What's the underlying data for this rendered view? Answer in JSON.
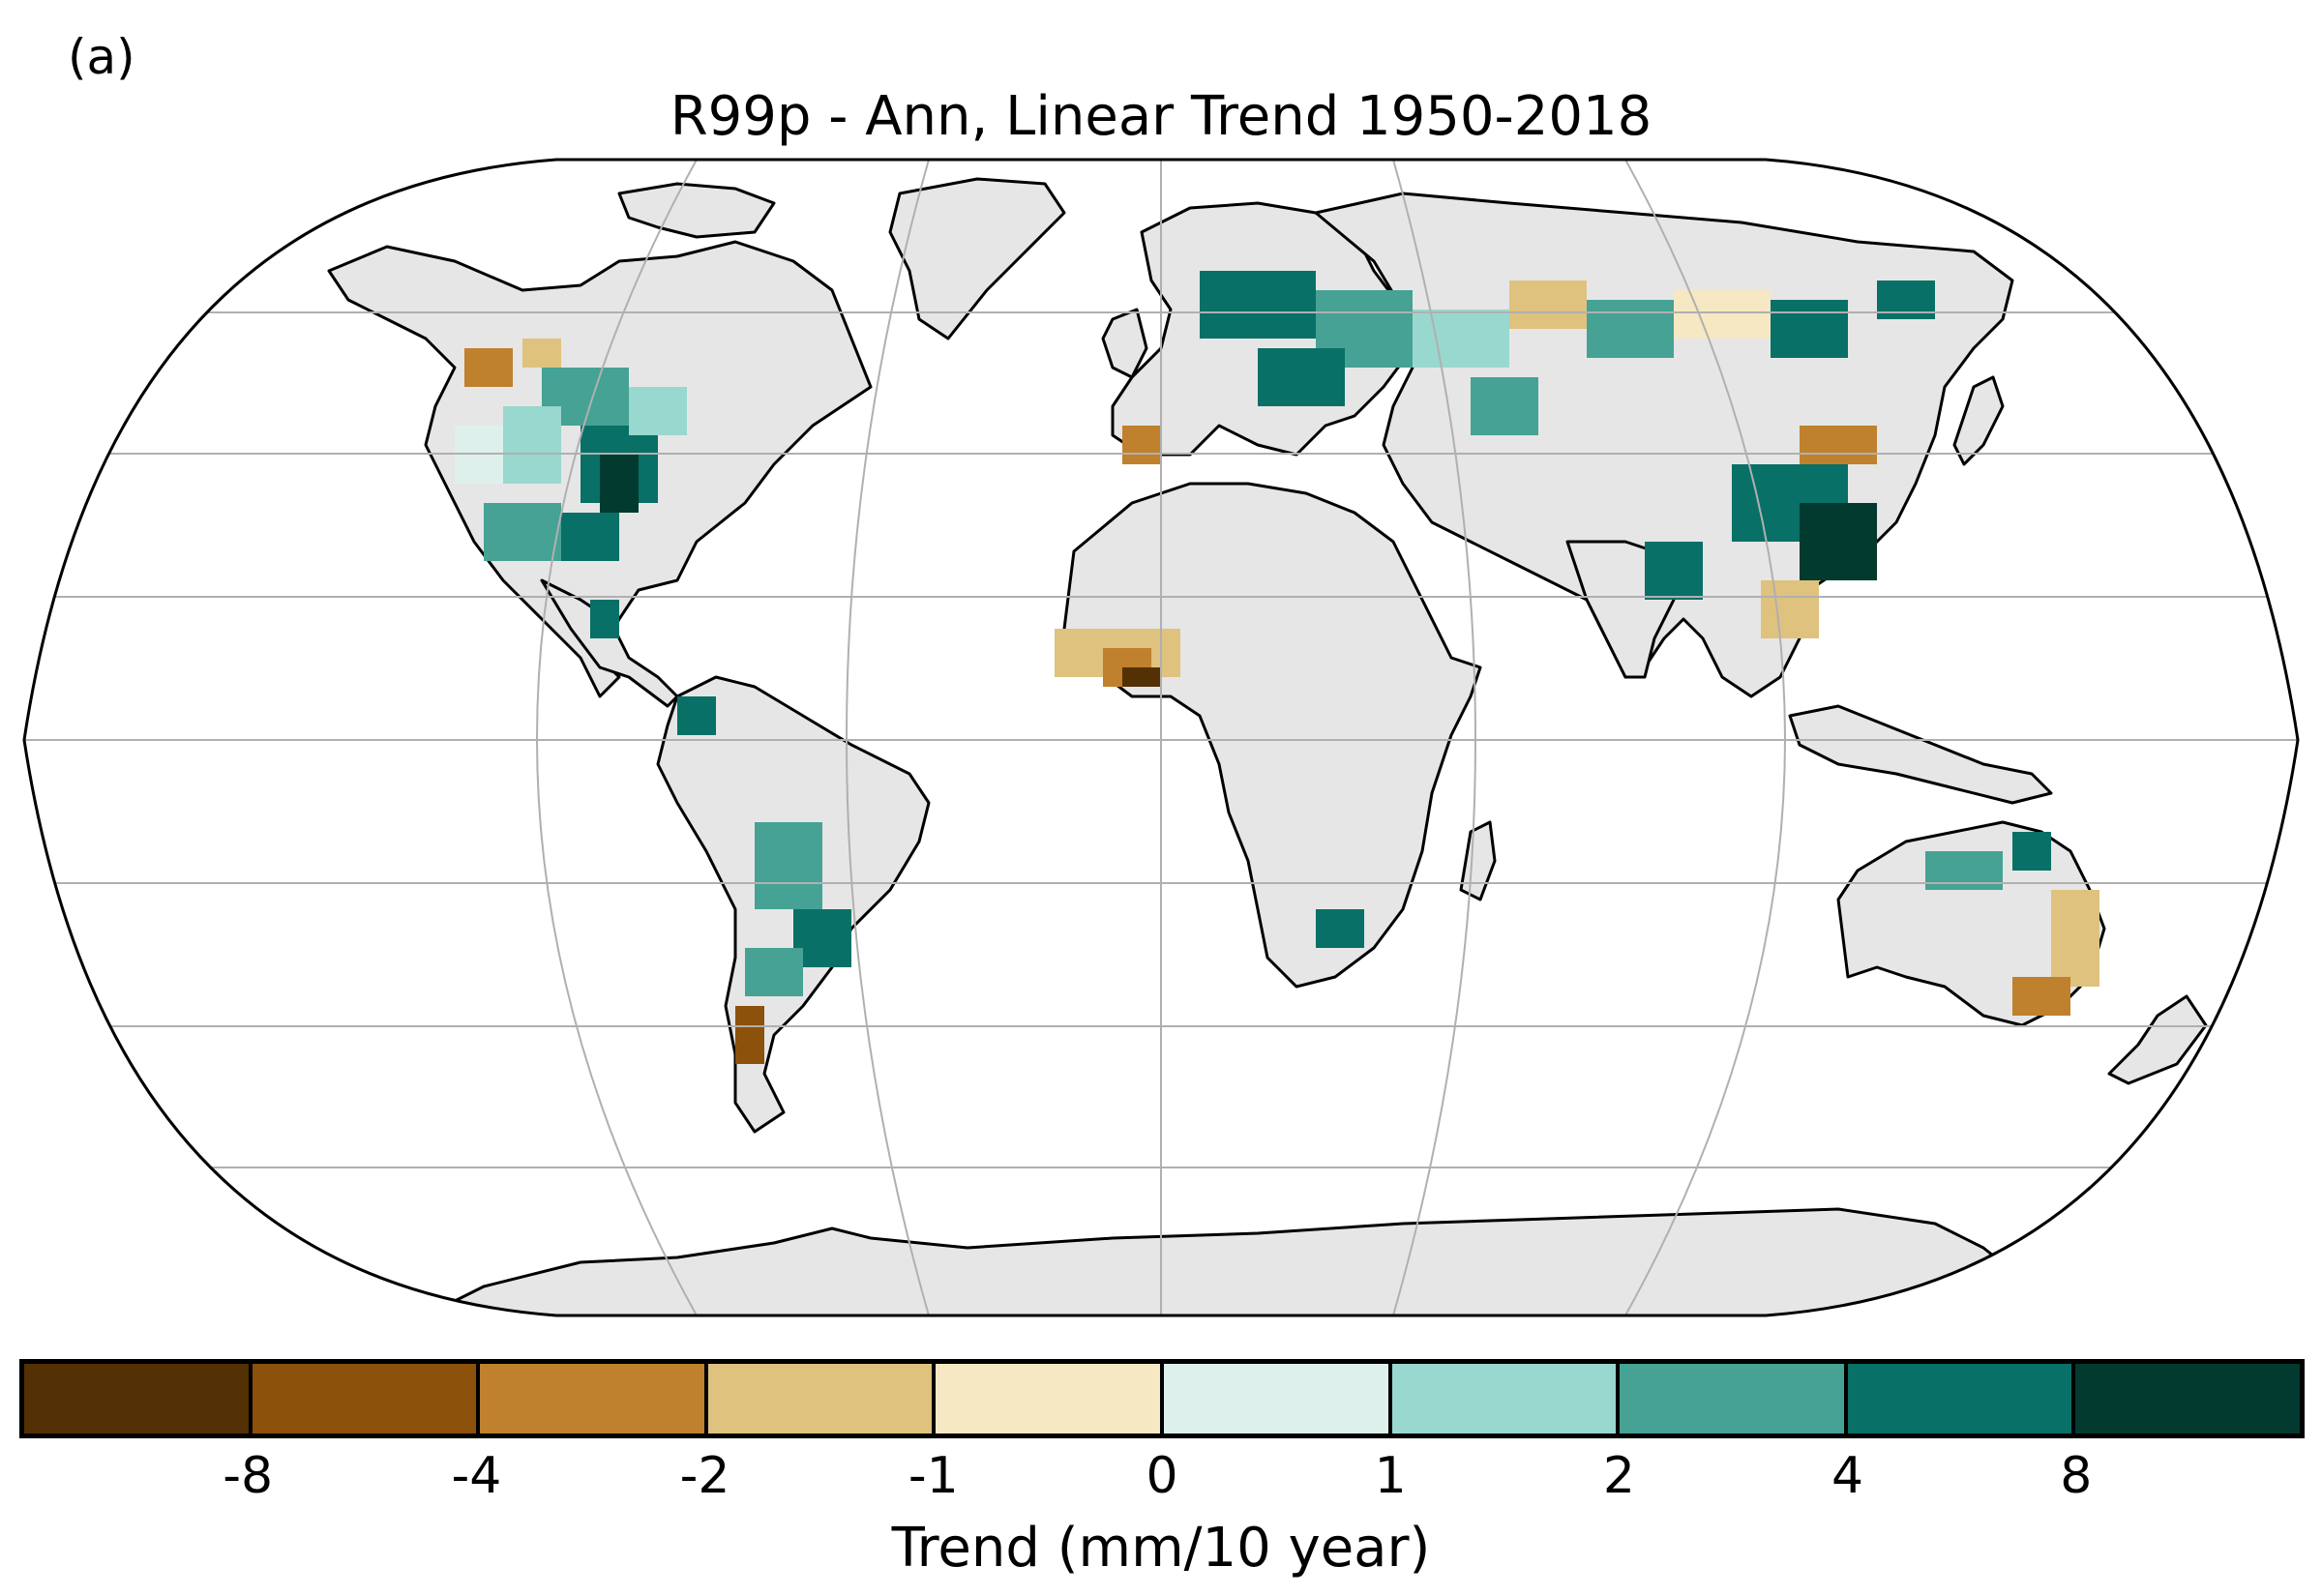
{
  "panel_label": "(a)",
  "title": "R99p - Ann, Linear Trend 1950-2018",
  "colorbar": {
    "label": "Trend (mm/10 year)",
    "colors": [
      "#543005",
      "#8c510a",
      "#bf812d",
      "#dfc27d",
      "#f6e8c3",
      "#ddf0ec",
      "#99d8ce",
      "#45a294",
      "#087066",
      "#023a30"
    ],
    "ticks": [
      "-8",
      "-4",
      "-2",
      "-1",
      "0",
      "1",
      "2",
      "4",
      "8"
    ]
  },
  "map": {
    "projection": "Robinson",
    "land_color": "#e6e6e6",
    "graticule_color": "#b0b0b0",
    "central_longitude": 0
  }
}
